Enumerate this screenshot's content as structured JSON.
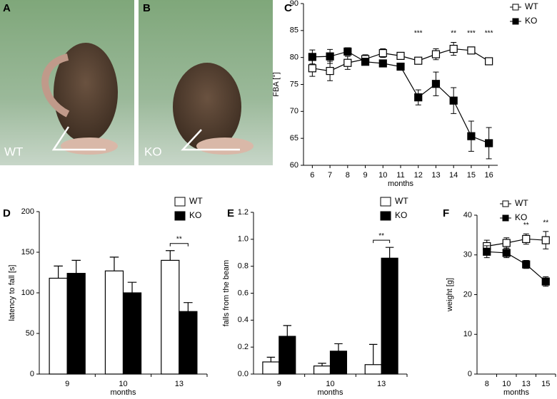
{
  "photos": [
    {
      "letter": "A",
      "label": "WT"
    },
    {
      "letter": "B",
      "label": "KO"
    }
  ],
  "chart_data": [
    {
      "type": "line",
      "panel": "C",
      "ylabel": "FBA  [°]",
      "xlabel": "months",
      "x": [
        6,
        7,
        8,
        9,
        10,
        11,
        12,
        13,
        14,
        15,
        16
      ],
      "xlim": [
        5.5,
        16.5
      ],
      "xticks": [
        6,
        7,
        8,
        9,
        10,
        11,
        12,
        13,
        14,
        15,
        16
      ],
      "ylim": [
        60,
        90
      ],
      "yticks": [
        60,
        65,
        70,
        75,
        80,
        85,
        90
      ],
      "legend": "upper right",
      "series": [
        {
          "name": "WT",
          "color": "#ffffff",
          "values": [
            78,
            77.5,
            79,
            79.7,
            80.8,
            80.3,
            79.4,
            80.6,
            81.6,
            81.3,
            79.3
          ],
          "errors": [
            1.5,
            1.8,
            1.2,
            0.8,
            0.8,
            0.6,
            0.5,
            1,
            1.2,
            0.6,
            0.5
          ]
        },
        {
          "name": "KO",
          "color": "#000000",
          "values": [
            80.1,
            80.2,
            81.1,
            79.2,
            78.9,
            78.3,
            72.6,
            75.1,
            72,
            65.4,
            64.1
          ],
          "errors": [
            1.3,
            1.3,
            0.7,
            0.6,
            0.6,
            0.5,
            1.4,
            2.2,
            2.4,
            2.8,
            2.9
          ]
        }
      ],
      "annotations": [
        {
          "x": 12,
          "text": "***"
        },
        {
          "x": 14,
          "text": "**"
        },
        {
          "x": 15,
          "text": "***"
        },
        {
          "x": 16,
          "text": "***"
        }
      ]
    },
    {
      "type": "bar",
      "panel": "D",
      "ylabel": "latency to fall [s]",
      "xlabel": "months",
      "categories": [
        "9",
        "10",
        "13"
      ],
      "ylim": [
        0,
        200
      ],
      "yticks": [
        0,
        50,
        100,
        150,
        200
      ],
      "legend": "upper right",
      "series": [
        {
          "name": "WT",
          "color": "#ffffff",
          "values": [
            118,
            127,
            140
          ],
          "errors": [
            15,
            17,
            12
          ]
        },
        {
          "name": "KO",
          "color": "#000000",
          "values": [
            124,
            100,
            77
          ],
          "errors": [
            16,
            13,
            11
          ]
        }
      ],
      "annotations": [
        {
          "category": "13",
          "text": "**"
        }
      ]
    },
    {
      "type": "bar",
      "panel": "E",
      "ylabel": "falls from the beam",
      "xlabel": "months",
      "categories": [
        "9",
        "10",
        "13"
      ],
      "ylim": [
        0,
        1.2
      ],
      "yticks": [
        {
          "value": 0,
          "label": "0.0"
        },
        0.2,
        0.4,
        0.6,
        0.8,
        {
          "value": 1,
          "label": "1.0"
        },
        1.2
      ],
      "legend": "upper right",
      "series": [
        {
          "name": "WT",
          "color": "#ffffff",
          "values": [
            0.09,
            0.06,
            0.07
          ],
          "errors": [
            0.035,
            0.02,
            0.15
          ]
        },
        {
          "name": "KO",
          "color": "#000000",
          "values": [
            0.28,
            0.17,
            0.86
          ],
          "errors": [
            0.08,
            0.055,
            0.08
          ]
        }
      ],
      "annotations": [
        {
          "category": "13",
          "text": "**"
        }
      ]
    },
    {
      "type": "line",
      "panel": "F",
      "ylabel": "weight [g]",
      "xlabel": "months",
      "categories": [
        "8",
        "10",
        "13",
        "15"
      ],
      "ylim": [
        0,
        40
      ],
      "yticks": [
        0,
        10,
        20,
        30,
        40
      ],
      "legend": "upper right",
      "series": [
        {
          "name": "WT",
          "color": "#ffffff",
          "values": [
            32.2,
            33,
            34,
            33.7
          ],
          "errors": [
            1.5,
            1.3,
            1.3,
            2.2
          ]
        },
        {
          "name": "KO",
          "color": "#000000",
          "values": [
            30.8,
            30.5,
            27.6,
            23.3
          ],
          "errors": [
            1.5,
            1.2,
            1,
            1.2
          ]
        }
      ],
      "annotations": [
        {
          "category": "13",
          "text": "**"
        },
        {
          "category": "15",
          "text": "**"
        }
      ]
    }
  ]
}
